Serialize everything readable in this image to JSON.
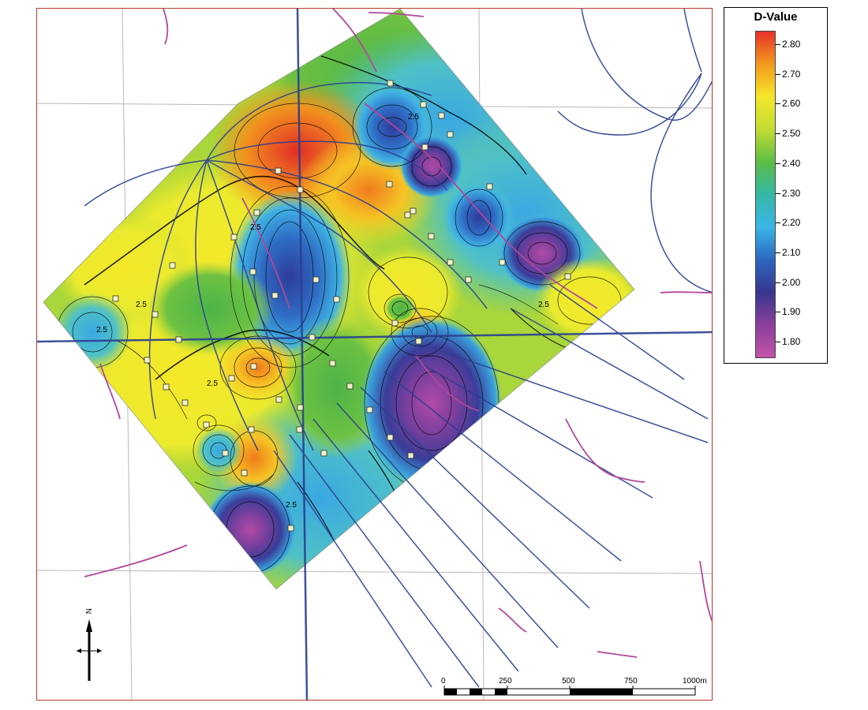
{
  "legend": {
    "title": "D-Value",
    "labels": [
      "2.80",
      "2.70",
      "2.60",
      "2.50",
      "2.40",
      "2.30",
      "2.20",
      "2.10",
      "2.00",
      "1.90",
      "1.80"
    ],
    "gradient_stops": [
      "#e8322a",
      "#f29a1e",
      "#f5e62a",
      "#c4dc34",
      "#5bbd45",
      "#34b8a6",
      "#3ab6e8",
      "#2d66c0",
      "#37368f",
      "#8a3f9a",
      "#c154a8"
    ]
  },
  "map": {
    "contour_labels": [
      "2.5",
      "2.5",
      "2.5",
      "2.5",
      "2.5",
      "2.5",
      "2.5"
    ]
  },
  "scale_bar": {
    "labels": [
      "0",
      "250",
      "500",
      "750",
      "1000m"
    ]
  },
  "north_arrow": {
    "label": "N"
  },
  "colors": {
    "frame_border": "#c0392b",
    "road_blue": "#2a3f8f",
    "fault_magenta": "#b2479a",
    "grid_gray": "#b9b9b9",
    "contour": "#000000"
  }
}
